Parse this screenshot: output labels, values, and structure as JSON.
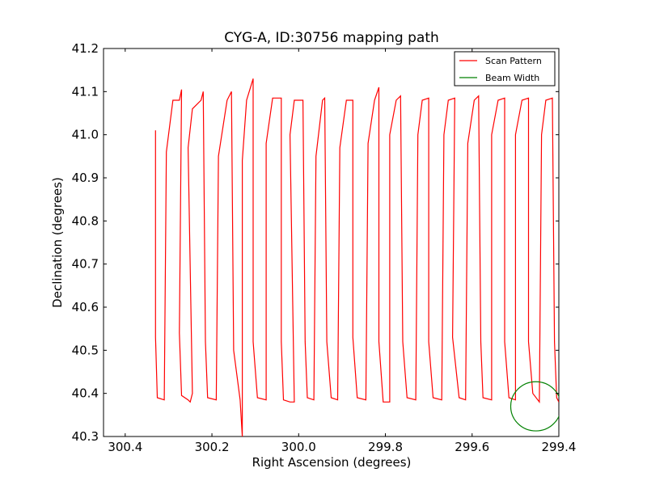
{
  "chart_data": {
    "type": "line",
    "title": "CYG-A, ID:30756 mapping path",
    "xlabel": "Right Ascension (degrees)",
    "ylabel": "Declination (degrees)",
    "xlim": [
      300.45,
      299.4
    ],
    "ylim": [
      40.3,
      41.2
    ],
    "xticks": [
      300.4,
      300.2,
      300.0,
      299.8,
      299.6,
      299.4
    ],
    "xtick_labels": [
      "300.4",
      "300.2",
      "300.0",
      "299.8",
      "299.6",
      "299.4"
    ],
    "yticks": [
      40.3,
      40.4,
      40.5,
      40.6,
      40.7,
      40.8,
      40.9,
      41.0,
      41.1,
      41.2
    ],
    "ytick_labels": [
      "40.3",
      "40.4",
      "40.5",
      "40.6",
      "40.7",
      "40.8",
      "40.9",
      "41.0",
      "41.1",
      "41.2"
    ],
    "grid": false,
    "legend_position": "top-right",
    "series": [
      {
        "name": "Scan Pattern",
        "color": "#ff0000",
        "kind": "line",
        "points": [
          [
            300.33,
            41.01
          ],
          [
            300.33,
            40.53
          ],
          [
            300.326,
            40.39
          ],
          [
            300.31,
            40.385
          ],
          [
            300.305,
            40.96
          ],
          [
            300.29,
            41.08
          ],
          [
            300.275,
            41.08
          ],
          [
            300.27,
            41.105
          ],
          [
            300.275,
            40.54
          ],
          [
            300.27,
            40.395
          ],
          [
            300.255,
            40.385
          ],
          [
            300.25,
            40.38
          ],
          [
            300.245,
            40.4
          ],
          [
            300.255,
            40.97
          ],
          [
            300.245,
            41.06
          ],
          [
            300.225,
            41.08
          ],
          [
            300.22,
            41.1
          ],
          [
            300.215,
            40.52
          ],
          [
            300.21,
            40.39
          ],
          [
            300.19,
            40.385
          ],
          [
            300.185,
            40.95
          ],
          [
            300.165,
            41.08
          ],
          [
            300.155,
            41.1
          ],
          [
            300.15,
            40.5
          ],
          [
            300.135,
            40.385
          ],
          [
            300.13,
            40.3
          ],
          [
            300.13,
            40.94
          ],
          [
            300.12,
            41.08
          ],
          [
            300.105,
            41.13
          ],
          [
            300.105,
            40.52
          ],
          [
            300.095,
            40.39
          ],
          [
            300.075,
            40.385
          ],
          [
            300.075,
            40.98
          ],
          [
            300.06,
            41.085
          ],
          [
            300.04,
            41.085
          ],
          [
            300.04,
            40.52
          ],
          [
            300.035,
            40.385
          ],
          [
            300.02,
            40.38
          ],
          [
            300.01,
            40.38
          ],
          [
            300.02,
            41.0
          ],
          [
            300.01,
            41.08
          ],
          [
            299.99,
            41.08
          ],
          [
            299.985,
            40.52
          ],
          [
            299.98,
            40.39
          ],
          [
            299.965,
            40.385
          ],
          [
            299.96,
            40.95
          ],
          [
            299.945,
            41.08
          ],
          [
            299.94,
            41.085
          ],
          [
            299.935,
            40.52
          ],
          [
            299.925,
            40.39
          ],
          [
            299.91,
            40.385
          ],
          [
            299.905,
            40.97
          ],
          [
            299.89,
            41.08
          ],
          [
            299.875,
            41.08
          ],
          [
            299.875,
            40.53
          ],
          [
            299.865,
            40.39
          ],
          [
            299.845,
            40.385
          ],
          [
            299.84,
            40.98
          ],
          [
            299.825,
            41.08
          ],
          [
            299.815,
            41.11
          ],
          [
            299.815,
            40.52
          ],
          [
            299.805,
            40.38
          ],
          [
            299.79,
            40.38
          ],
          [
            299.79,
            41.0
          ],
          [
            299.775,
            41.08
          ],
          [
            299.765,
            41.09
          ],
          [
            299.76,
            40.52
          ],
          [
            299.75,
            40.39
          ],
          [
            299.73,
            40.385
          ],
          [
            299.725,
            41.0
          ],
          [
            299.715,
            41.08
          ],
          [
            299.7,
            41.085
          ],
          [
            299.7,
            40.52
          ],
          [
            299.69,
            40.39
          ],
          [
            299.67,
            40.385
          ],
          [
            299.665,
            41.0
          ],
          [
            299.655,
            41.08
          ],
          [
            299.64,
            41.085
          ],
          [
            299.645,
            40.53
          ],
          [
            299.63,
            40.39
          ],
          [
            299.615,
            40.385
          ],
          [
            299.61,
            40.98
          ],
          [
            299.595,
            41.08
          ],
          [
            299.585,
            41.09
          ],
          [
            299.58,
            40.52
          ],
          [
            299.575,
            40.39
          ],
          [
            299.555,
            40.385
          ],
          [
            299.555,
            41.0
          ],
          [
            299.54,
            41.08
          ],
          [
            299.525,
            41.085
          ],
          [
            299.525,
            40.52
          ],
          [
            299.515,
            40.39
          ],
          [
            299.5,
            40.385
          ],
          [
            299.5,
            41.0
          ],
          [
            299.485,
            41.08
          ],
          [
            299.47,
            41.085
          ],
          [
            299.47,
            40.52
          ],
          [
            299.46,
            40.4
          ],
          [
            299.445,
            40.38
          ],
          [
            299.44,
            41.0
          ],
          [
            299.43,
            41.08
          ],
          [
            299.415,
            41.085
          ],
          [
            299.41,
            40.52
          ],
          [
            299.405,
            40.39
          ],
          [
            299.4,
            40.38
          ]
        ]
      },
      {
        "name": "Beam Width",
        "color": "#008000",
        "kind": "circle",
        "center": [
          299.453,
          40.37
        ],
        "radius_ra": 0.058,
        "radius_dec": 0.057
      }
    ]
  }
}
